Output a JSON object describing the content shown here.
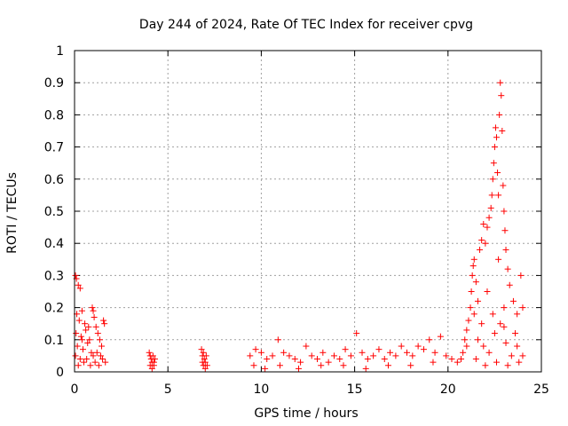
{
  "chart_data": {
    "type": "scatter",
    "title": "Day 244 of 2024, Rate Of TEC Index for receiver cpvg",
    "xlabel": "GPS time / hours",
    "ylabel": "ROTI / TECUs",
    "xlim": [
      0,
      25
    ],
    "ylim": [
      0,
      1
    ],
    "xticks": [
      0,
      5,
      10,
      15,
      20,
      25
    ],
    "xtick_labels": [
      "0",
      "5",
      "10",
      "15",
      "20",
      "25"
    ],
    "yticks": [
      0,
      0.1,
      0.2,
      0.3,
      0.4,
      0.5,
      0.6,
      0.7,
      0.8,
      0.9,
      1
    ],
    "ytick_labels": [
      "0",
      "0.1",
      "0.2",
      "0.3",
      "0.4",
      "0.5",
      "0.6",
      "0.7",
      "0.8",
      "0.9",
      "1"
    ],
    "grid": true,
    "marker": "+",
    "color": "#ff0000",
    "series": [
      {
        "name": "ROTI",
        "points": [
          [
            0.05,
            0.3
          ],
          [
            0.1,
            0.29
          ],
          [
            0.2,
            0.27
          ],
          [
            0.3,
            0.26
          ],
          [
            0.12,
            0.18
          ],
          [
            0.25,
            0.16
          ],
          [
            0.4,
            0.19
          ],
          [
            0.55,
            0.15
          ],
          [
            0.08,
            0.12
          ],
          [
            0.35,
            0.11
          ],
          [
            0.6,
            0.13
          ],
          [
            0.8,
            0.1
          ],
          [
            0.15,
            0.08
          ],
          [
            0.45,
            0.07
          ],
          [
            0.7,
            0.09
          ],
          [
            0.9,
            0.06
          ],
          [
            0.05,
            0.05
          ],
          [
            0.3,
            0.04
          ],
          [
            0.65,
            0.04
          ],
          [
            1.0,
            0.05
          ],
          [
            0.2,
            0.02
          ],
          [
            0.5,
            0.03
          ],
          [
            0.85,
            0.02
          ],
          [
            1.1,
            0.03
          ],
          [
            0.95,
            0.2
          ],
          [
            1.0,
            0.19
          ],
          [
            1.05,
            0.17
          ],
          [
            1.15,
            0.14
          ],
          [
            1.25,
            0.12
          ],
          [
            1.35,
            0.1
          ],
          [
            1.45,
            0.08
          ],
          [
            1.55,
            0.16
          ],
          [
            1.6,
            0.15
          ],
          [
            1.2,
            0.06
          ],
          [
            1.4,
            0.05
          ],
          [
            1.5,
            0.04
          ],
          [
            1.3,
            0.02
          ],
          [
            1.65,
            0.03
          ],
          [
            0.75,
            0.14
          ],
          [
            0.4,
            0.1
          ],
          [
            4.0,
            0.06
          ],
          [
            4.05,
            0.05
          ],
          [
            4.1,
            0.04
          ],
          [
            4.15,
            0.03
          ],
          [
            4.2,
            0.05
          ],
          [
            4.25,
            0.02
          ],
          [
            4.3,
            0.04
          ],
          [
            4.05,
            0.02
          ],
          [
            4.15,
            0.01
          ],
          [
            4.25,
            0.03
          ],
          [
            6.8,
            0.07
          ],
          [
            6.85,
            0.05
          ],
          [
            6.9,
            0.06
          ],
          [
            6.95,
            0.04
          ],
          [
            7.0,
            0.03
          ],
          [
            7.05,
            0.05
          ],
          [
            7.1,
            0.02
          ],
          [
            6.9,
            0.02
          ],
          [
            7.0,
            0.01
          ],
          [
            6.85,
            0.03
          ],
          [
            9.4,
            0.05
          ],
          [
            9.7,
            0.07
          ],
          [
            10.0,
            0.06
          ],
          [
            10.3,
            0.04
          ],
          [
            10.6,
            0.05
          ],
          [
            10.9,
            0.1
          ],
          [
            11.2,
            0.06
          ],
          [
            11.5,
            0.05
          ],
          [
            11.8,
            0.04
          ],
          [
            12.1,
            0.03
          ],
          [
            12.4,
            0.08
          ],
          [
            12.7,
            0.05
          ],
          [
            13.0,
            0.04
          ],
          [
            13.3,
            0.06
          ],
          [
            13.6,
            0.03
          ],
          [
            13.9,
            0.05
          ],
          [
            14.2,
            0.04
          ],
          [
            14.5,
            0.07
          ],
          [
            14.8,
            0.05
          ],
          [
            15.1,
            0.12
          ],
          [
            15.4,
            0.06
          ],
          [
            15.7,
            0.04
          ],
          [
            16.0,
            0.05
          ],
          [
            16.3,
            0.07
          ],
          [
            16.6,
            0.04
          ],
          [
            16.9,
            0.06
          ],
          [
            17.2,
            0.05
          ],
          [
            17.5,
            0.08
          ],
          [
            17.8,
            0.06
          ],
          [
            18.1,
            0.05
          ],
          [
            18.4,
            0.08
          ],
          [
            18.7,
            0.07
          ],
          [
            19.0,
            0.1
          ],
          [
            19.3,
            0.06
          ],
          [
            19.6,
            0.11
          ],
          [
            19.9,
            0.05
          ],
          [
            20.2,
            0.04
          ],
          [
            20.5,
            0.03
          ],
          [
            9.6,
            0.02
          ],
          [
            10.2,
            0.01
          ],
          [
            11.0,
            0.02
          ],
          [
            12.0,
            0.01
          ],
          [
            13.2,
            0.02
          ],
          [
            14.4,
            0.02
          ],
          [
            15.6,
            0.01
          ],
          [
            16.8,
            0.02
          ],
          [
            18.0,
            0.02
          ],
          [
            19.2,
            0.03
          ],
          [
            20.8,
            0.06
          ],
          [
            20.9,
            0.1
          ],
          [
            21.0,
            0.13
          ],
          [
            21.1,
            0.16
          ],
          [
            21.2,
            0.2
          ],
          [
            21.25,
            0.25
          ],
          [
            21.3,
            0.3
          ],
          [
            21.35,
            0.33
          ],
          [
            21.4,
            0.35
          ],
          [
            21.5,
            0.28
          ],
          [
            21.6,
            0.22
          ],
          [
            21.7,
            0.38
          ],
          [
            21.8,
            0.41
          ],
          [
            21.9,
            0.46
          ],
          [
            22.0,
            0.4
          ],
          [
            22.1,
            0.45
          ],
          [
            22.2,
            0.48
          ],
          [
            22.3,
            0.51
          ],
          [
            22.35,
            0.55
          ],
          [
            22.4,
            0.6
          ],
          [
            22.45,
            0.65
          ],
          [
            22.5,
            0.7
          ],
          [
            22.55,
            0.76
          ],
          [
            22.6,
            0.73
          ],
          [
            22.65,
            0.62
          ],
          [
            22.7,
            0.55
          ],
          [
            22.75,
            0.8
          ],
          [
            22.8,
            0.9
          ],
          [
            22.85,
            0.86
          ],
          [
            22.9,
            0.75
          ],
          [
            22.95,
            0.58
          ],
          [
            23.0,
            0.5
          ],
          [
            23.05,
            0.44
          ],
          [
            23.1,
            0.38
          ],
          [
            23.2,
            0.32
          ],
          [
            23.3,
            0.27
          ],
          [
            23.5,
            0.22
          ],
          [
            23.7,
            0.18
          ],
          [
            23.9,
            0.3
          ],
          [
            24.0,
            0.2
          ],
          [
            21.6,
            0.1
          ],
          [
            21.9,
            0.08
          ],
          [
            22.2,
            0.06
          ],
          [
            22.5,
            0.12
          ],
          [
            22.8,
            0.15
          ],
          [
            23.1,
            0.09
          ],
          [
            23.4,
            0.05
          ],
          [
            23.7,
            0.08
          ],
          [
            21.5,
            0.04
          ],
          [
            22.0,
            0.02
          ],
          [
            22.6,
            0.03
          ],
          [
            23.2,
            0.02
          ],
          [
            23.8,
            0.03
          ],
          [
            24.0,
            0.05
          ],
          [
            21.8,
            0.15
          ],
          [
            22.4,
            0.18
          ],
          [
            23.0,
            0.14
          ],
          [
            23.6,
            0.12
          ],
          [
            22.1,
            0.25
          ],
          [
            22.7,
            0.35
          ],
          [
            23.0,
            0.2
          ],
          [
            21.4,
            0.18
          ],
          [
            21.0,
            0.08
          ],
          [
            20.7,
            0.04
          ]
        ]
      }
    ]
  }
}
